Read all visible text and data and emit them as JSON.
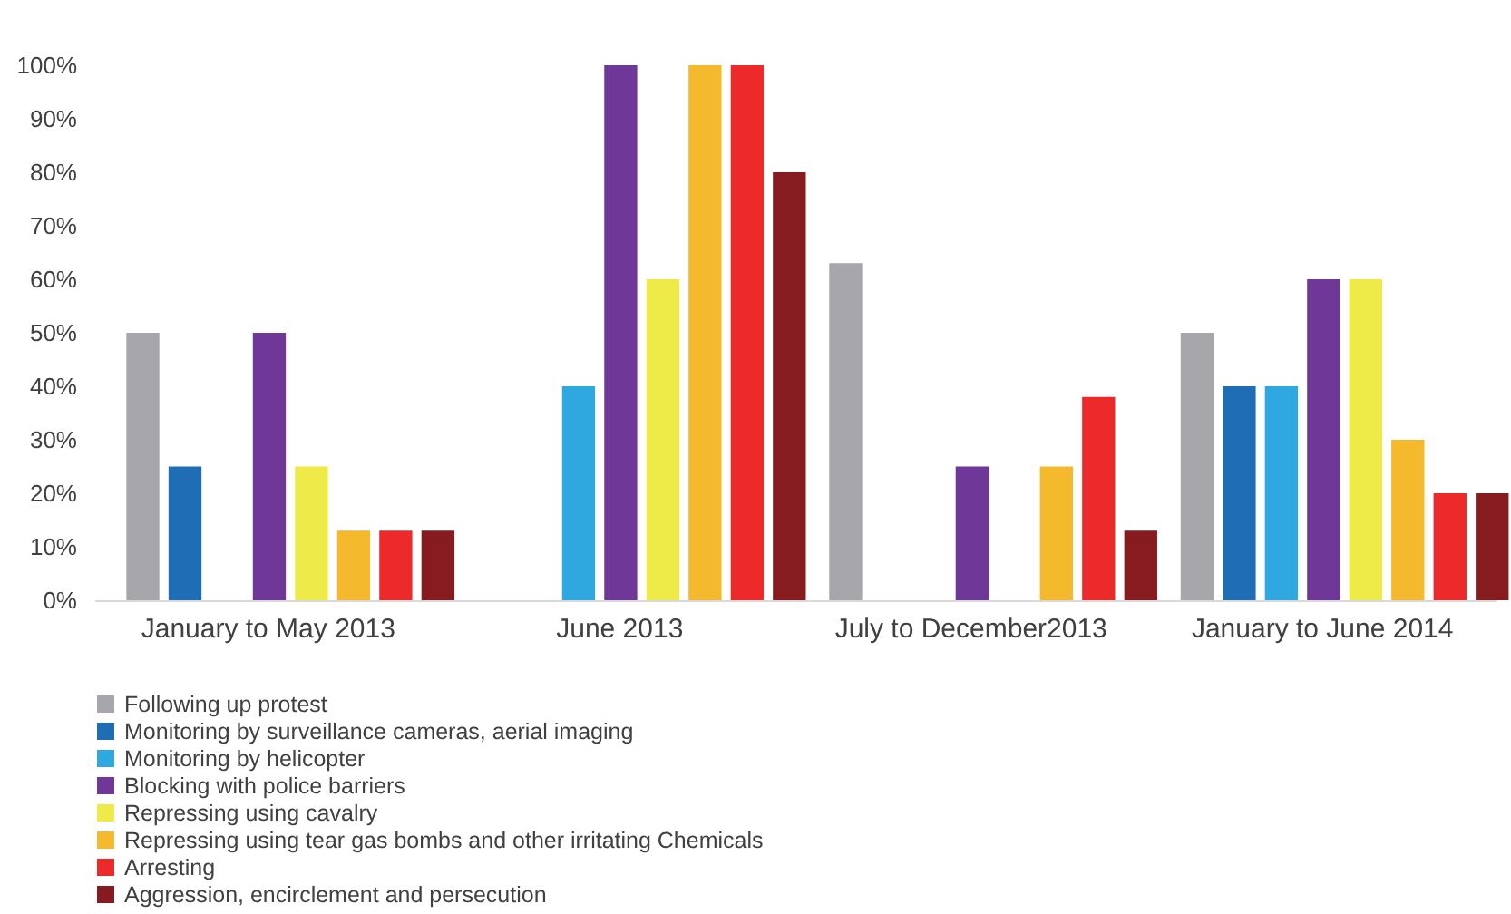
{
  "chart_data": {
    "type": "bar",
    "categories": [
      "January to May 2013",
      "June 2013",
      "July to December2013",
      "January to June 2014"
    ],
    "series": [
      {
        "name": "Following up protest",
        "color": "#a6a6ab",
        "values": [
          50,
          0,
          63,
          50
        ]
      },
      {
        "name": "Monitoring by surveillance cameras, aerial imaging",
        "color": "#1f6eb5",
        "values": [
          25,
          0,
          0,
          40
        ]
      },
      {
        "name": "Monitoring by helicopter",
        "color": "#2ea8df",
        "values": [
          0,
          40,
          0,
          40
        ]
      },
      {
        "name": "Blocking with police barriers",
        "color": "#6f3898",
        "values": [
          50,
          100,
          25,
          60
        ]
      },
      {
        "name": "Repressing using cavalry",
        "color": "#eeea48",
        "values": [
          25,
          60,
          0,
          60
        ]
      },
      {
        "name": "Repressing using tear gas bombs and other irritating Chemicals",
        "color": "#f4b92c",
        "values": [
          13,
          100,
          25,
          30
        ]
      },
      {
        "name": "Arresting",
        "color": "#ec2a2a",
        "values": [
          13,
          100,
          38,
          20
        ]
      },
      {
        "name": "Aggression, encirclement and persecution",
        "color": "#861c20",
        "values": [
          13,
          80,
          13,
          20
        ]
      }
    ],
    "ylim": [
      0,
      100
    ],
    "yticks": [
      {
        "value": 0,
        "label": "0%"
      },
      {
        "value": 10,
        "label": "10%"
      },
      {
        "value": 20,
        "label": "20%"
      },
      {
        "value": 30,
        "label": "30%"
      },
      {
        "value": 40,
        "label": "40%"
      },
      {
        "value": 50,
        "label": "50%"
      },
      {
        "value": 60,
        "label": "60%"
      },
      {
        "value": 70,
        "label": "70%"
      },
      {
        "value": 80,
        "label": "80%"
      },
      {
        "value": 90,
        "label": "90%"
      },
      {
        "value": 100,
        "label": "100%"
      }
    ],
    "grid": false,
    "legend": "bottom"
  }
}
